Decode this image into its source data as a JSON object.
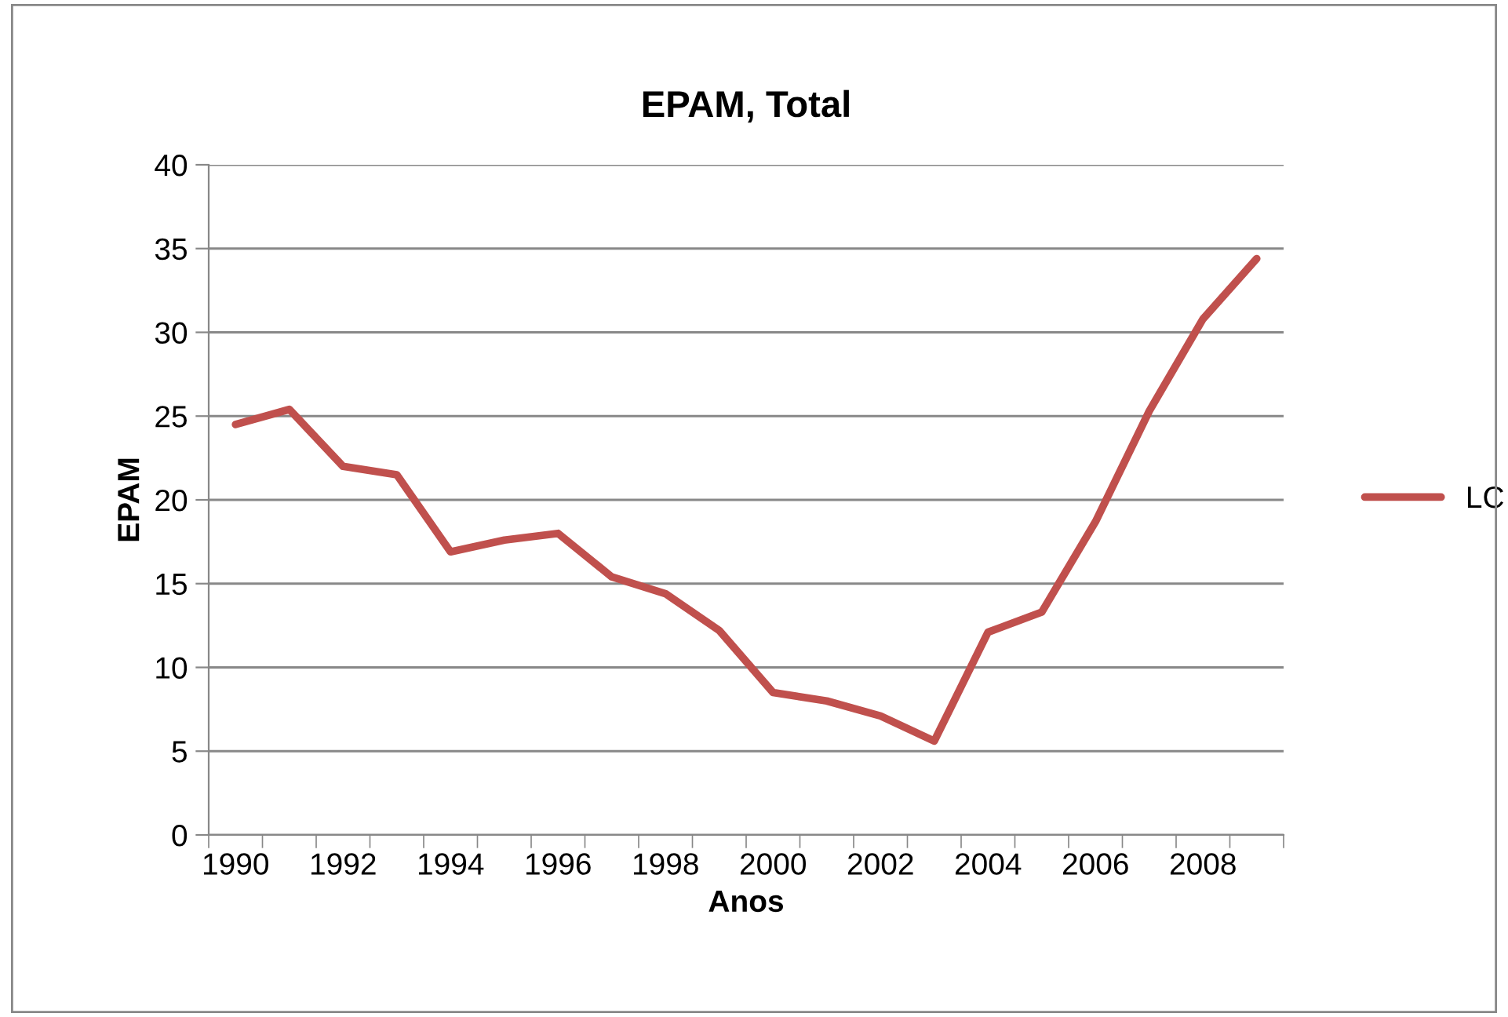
{
  "chart_data": {
    "type": "line",
    "title": "EPAM, Total",
    "xlabel": "Anos",
    "ylabel": "EPAM",
    "categories": [
      "1990",
      null,
      "1992",
      null,
      "1994",
      null,
      "1996",
      null,
      "1998",
      null,
      "2000",
      null,
      "2002",
      null,
      "2004",
      null,
      "2006",
      null,
      "2008",
      null
    ],
    "series": [
      {
        "name": "LC",
        "color": "#c0504d",
        "values": [
          24.5,
          25.4,
          22.0,
          21.5,
          16.9,
          17.6,
          18.0,
          15.4,
          14.4,
          12.2,
          8.5,
          8.0,
          7.1,
          5.6,
          12.1,
          13.3,
          18.7,
          25.3,
          30.8,
          34.4
        ]
      }
    ],
    "ylim": [
      0,
      40
    ],
    "yticks": [
      0,
      5,
      10,
      15,
      20,
      25,
      30,
      35,
      40
    ],
    "grid": "y",
    "legend": "right",
    "marker": "none",
    "line_style": "solid"
  }
}
